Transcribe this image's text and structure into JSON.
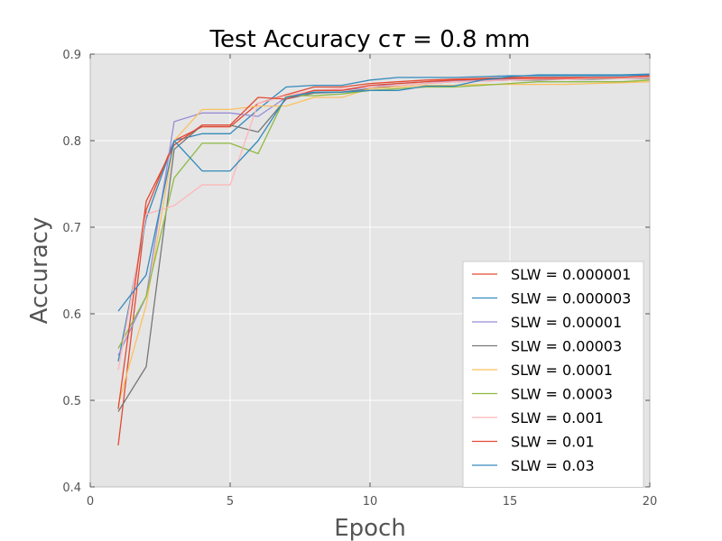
{
  "chart_data": {
    "type": "line",
    "title_prefix": "Test Accuracy  c",
    "title_tau": "τ",
    "title_suffix": " = 0.8 mm",
    "xlabel": "Epoch",
    "ylabel": "Accuracy",
    "xlim": [
      0,
      20
    ],
    "ylim": [
      0.4,
      0.9
    ],
    "xticks": [
      0,
      5,
      10,
      15,
      20
    ],
    "yticks": [
      0.4,
      0.5,
      0.6,
      0.7,
      0.8,
      0.9
    ],
    "xtick_labels": [
      "0",
      "5",
      "10",
      "15",
      "20"
    ],
    "ytick_labels": [
      "0.4",
      "0.5",
      "0.6",
      "0.7",
      "0.8",
      "0.9"
    ],
    "grid": true,
    "background": "#e5e5e5",
    "legend_position": "lower right",
    "x": [
      1,
      2,
      3,
      4,
      5,
      6,
      7,
      8,
      9,
      10,
      11,
      12,
      13,
      14,
      15,
      16,
      17,
      18,
      19,
      20
    ],
    "series": [
      {
        "name": "SLW = 0.000001",
        "color": "#E24A33",
        "values": [
          0.448,
          0.72,
          0.8,
          0.816,
          0.816,
          0.843,
          0.853,
          0.862,
          0.862,
          0.866,
          0.868,
          0.87,
          0.871,
          0.872,
          0.873,
          0.873,
          0.873,
          0.873,
          0.873,
          0.874
        ]
      },
      {
        "name": "SLW = 0.000003",
        "color": "#348ABD",
        "values": [
          0.545,
          0.71,
          0.8,
          0.808,
          0.808,
          0.836,
          0.862,
          0.864,
          0.864,
          0.87,
          0.873,
          0.873,
          0.873,
          0.874,
          0.875,
          0.875,
          0.875,
          0.875,
          0.875,
          0.876
        ]
      },
      {
        "name": "SLW = 0.00001",
        "color": "#988ED5",
        "values": [
          0.552,
          0.62,
          0.822,
          0.832,
          0.832,
          0.828,
          0.85,
          0.858,
          0.858,
          0.862,
          0.866,
          0.868,
          0.869,
          0.87,
          0.871,
          0.872,
          0.872,
          0.872,
          0.873,
          0.873
        ]
      },
      {
        "name": "SLW = 0.00003",
        "color": "#777777",
        "values": [
          0.487,
          0.539,
          0.79,
          0.818,
          0.818,
          0.81,
          0.848,
          0.855,
          0.856,
          0.86,
          0.864,
          0.866,
          0.868,
          0.869,
          0.87,
          0.87,
          0.871,
          0.871,
          0.872,
          0.872
        ]
      },
      {
        "name": "SLW = 0.0001",
        "color": "#FBC15E",
        "values": [
          0.495,
          0.61,
          0.8,
          0.836,
          0.836,
          0.84,
          0.84,
          0.85,
          0.85,
          0.86,
          0.862,
          0.864,
          0.864,
          0.865,
          0.865,
          0.865,
          0.865,
          0.866,
          0.867,
          0.868
        ]
      },
      {
        "name": "SLW = 0.0003",
        "color": "#8EBA42",
        "values": [
          0.56,
          0.62,
          0.757,
          0.797,
          0.797,
          0.785,
          0.852,
          0.852,
          0.854,
          0.858,
          0.86,
          0.862,
          0.862,
          0.864,
          0.866,
          0.868,
          0.868,
          0.868,
          0.868,
          0.87
        ]
      },
      {
        "name": "SLW = 0.001",
        "color": "#FFB5B8",
        "values": [
          0.535,
          0.715,
          0.725,
          0.749,
          0.749,
          0.843,
          0.852,
          0.858,
          0.86,
          0.862,
          0.864,
          0.866,
          0.868,
          0.869,
          0.87,
          0.871,
          0.871,
          0.872,
          0.872,
          0.873
        ]
      },
      {
        "name": "SLW = 0.01",
        "color": "#E24A33",
        "values": [
          0.49,
          0.73,
          0.795,
          0.818,
          0.818,
          0.85,
          0.848,
          0.858,
          0.858,
          0.864,
          0.866,
          0.868,
          0.87,
          0.871,
          0.872,
          0.872,
          0.872,
          0.873,
          0.873,
          0.875
        ]
      },
      {
        "name": "SLW = 0.03",
        "color": "#348ABD",
        "values": [
          0.603,
          0.645,
          0.8,
          0.765,
          0.765,
          0.8,
          0.85,
          0.856,
          0.856,
          0.858,
          0.858,
          0.863,
          0.863,
          0.87,
          0.874,
          0.876,
          0.876,
          0.876,
          0.876,
          0.877
        ]
      }
    ]
  }
}
